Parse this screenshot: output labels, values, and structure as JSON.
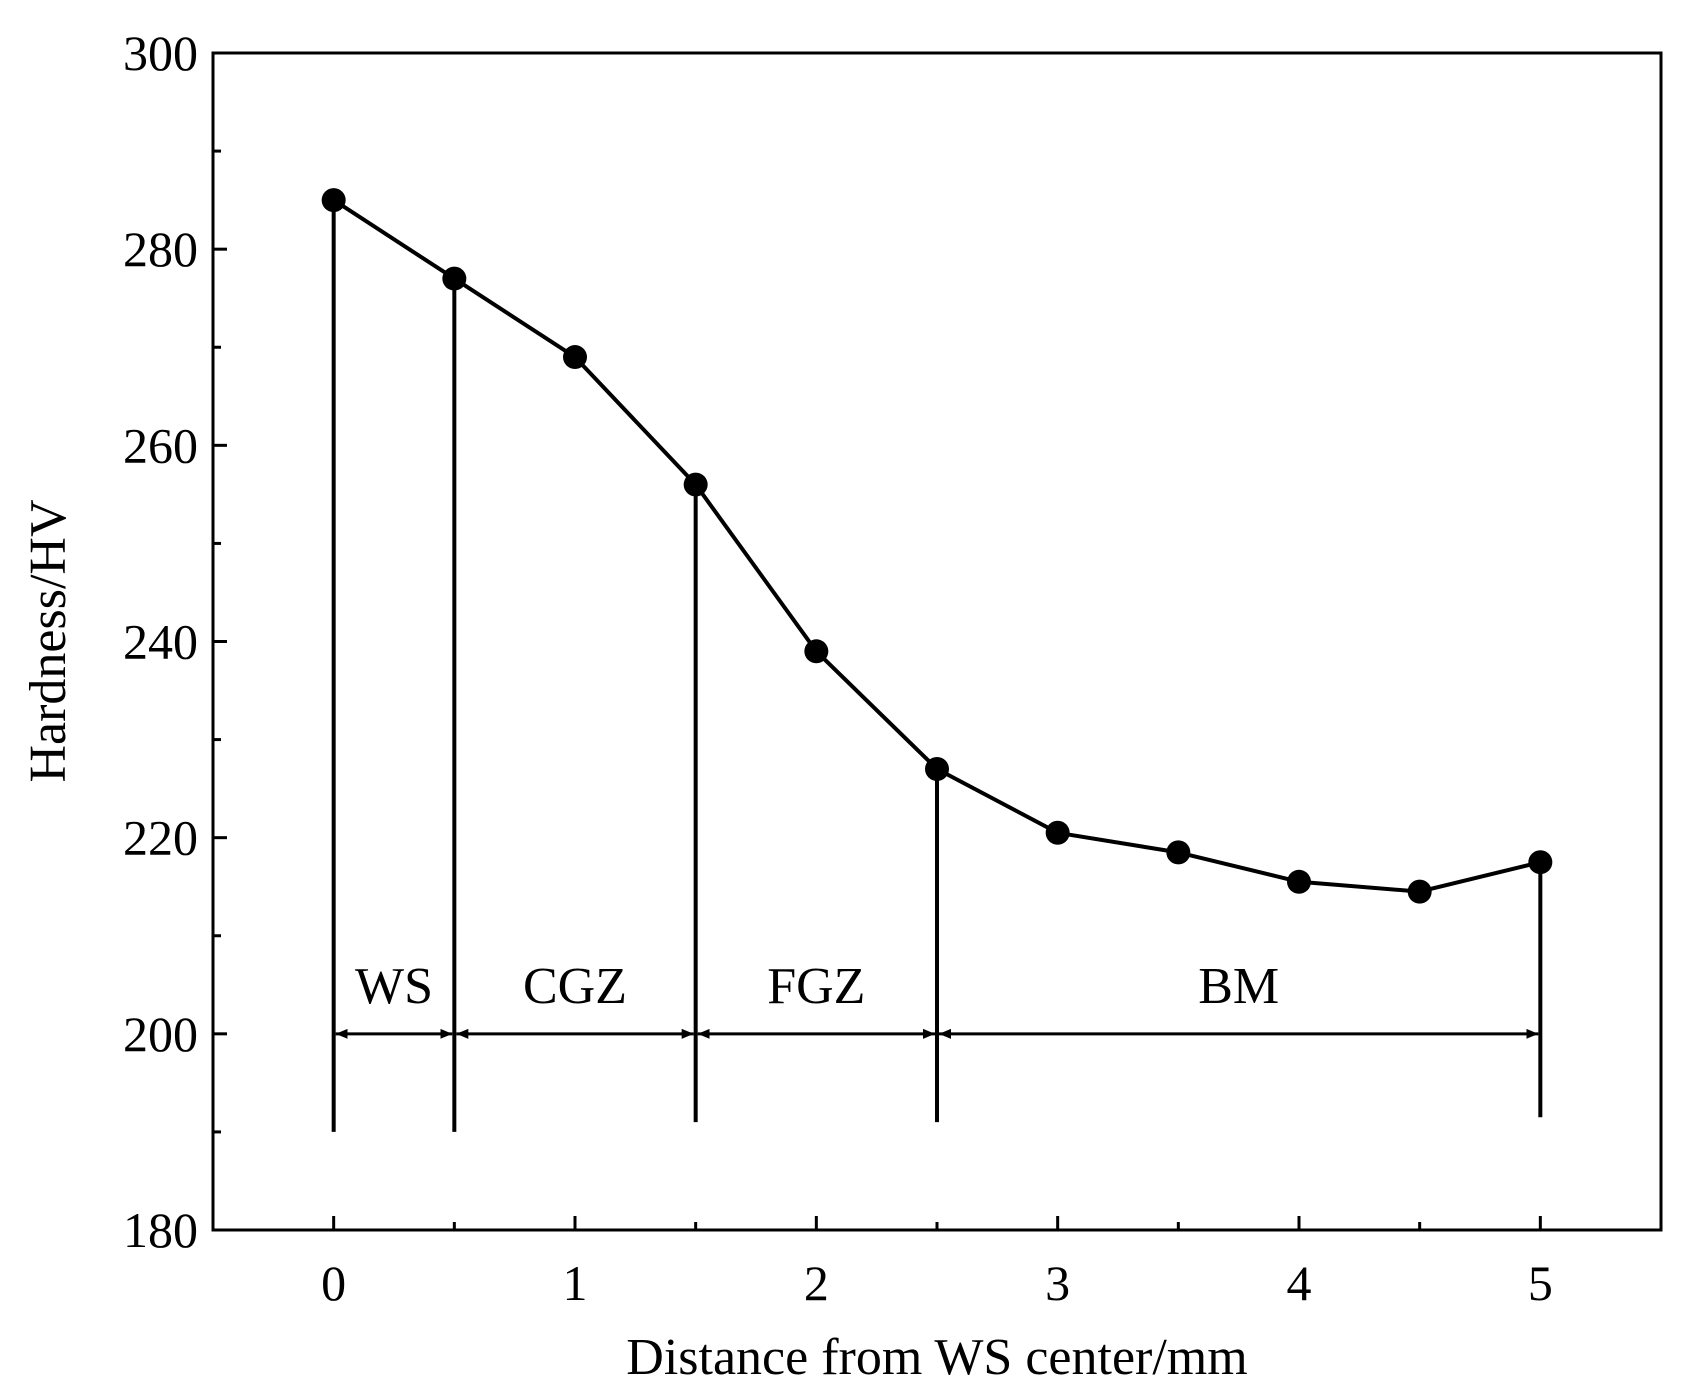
{
  "chart_data": {
    "type": "line",
    "title": "",
    "xlabel": "Distance from WS center/mm",
    "ylabel": "Hardness/HV",
    "xlim": [
      -0.5,
      5.5
    ],
    "ylim": [
      180,
      300
    ],
    "xticks": [
      0,
      1,
      2,
      3,
      4,
      5
    ],
    "yticks": [
      180,
      200,
      220,
      240,
      260,
      280,
      300
    ],
    "yminor": [
      190,
      210,
      230,
      250,
      270,
      290
    ],
    "xminor": [
      0.5,
      1.5,
      2.5,
      3.5,
      4.5
    ],
    "grid": false,
    "series": [
      {
        "name": "Hardness",
        "marker": "filled-circle",
        "color": "#000000",
        "x": [
          0,
          0.5,
          1,
          1.5,
          2,
          2.5,
          3,
          3.5,
          4,
          4.5,
          5
        ],
        "y": [
          285,
          277,
          269,
          256,
          239,
          227,
          220.5,
          218.5,
          215.5,
          214.5,
          217.5
        ]
      }
    ],
    "zone_boundaries": [
      {
        "x": 0,
        "y_bottom": 190
      },
      {
        "x": 0.5,
        "y_bottom": 190
      },
      {
        "x": 1.5,
        "y_bottom": 191
      },
      {
        "x": 2.5,
        "y_bottom": 191
      },
      {
        "x": 5,
        "y_bottom": 191.5
      }
    ],
    "zones": [
      {
        "label": "WS",
        "x_start": 0,
        "x_end": 0.5
      },
      {
        "label": "CGZ",
        "x_start": 0.5,
        "x_end": 1.5
      },
      {
        "label": "FGZ",
        "x_start": 1.5,
        "x_end": 2.5
      },
      {
        "label": "BM",
        "x_start": 2.5,
        "x_end": 5
      }
    ],
    "zone_arrow_y": 200,
    "zone_label_y": 205
  }
}
